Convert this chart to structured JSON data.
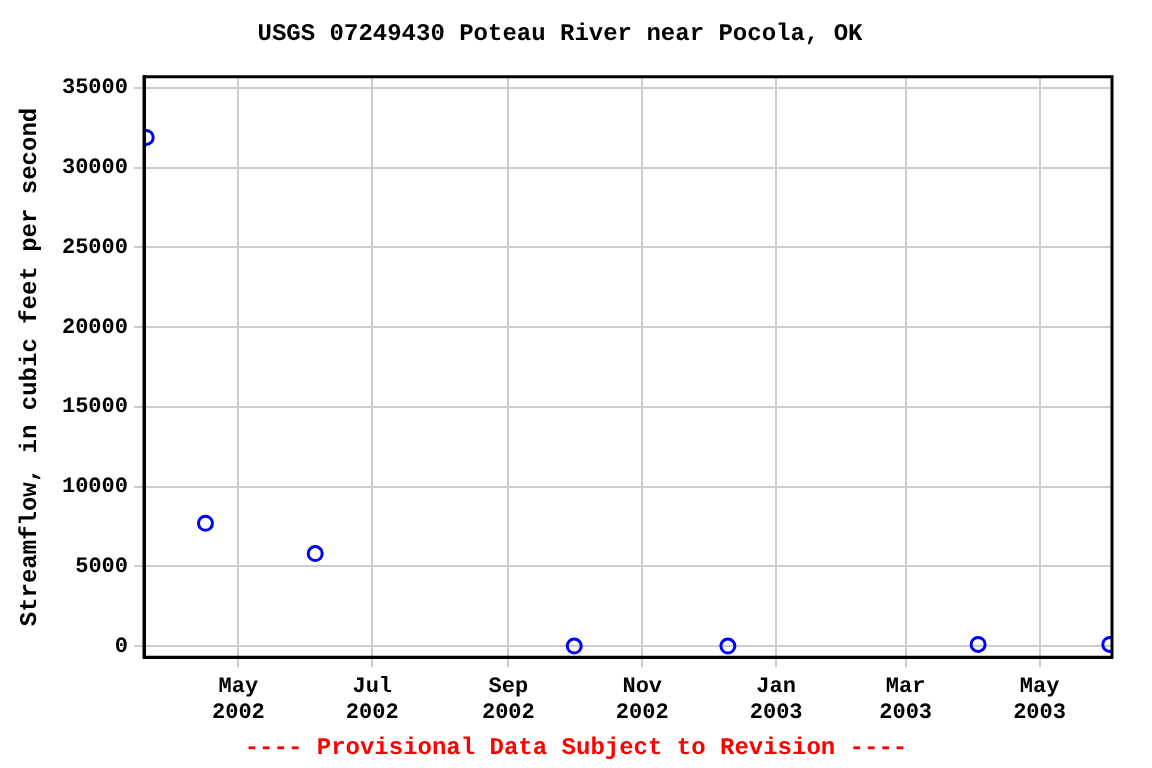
{
  "chart_data": {
    "type": "scatter",
    "title": "USGS 07249430 Poteau River near Pocola, OK",
    "ylabel": "Streamflow, in cubic feet per second",
    "x": [
      "2002-03-20",
      "2002-04-16",
      "2002-06-05",
      "2002-10-01",
      "2002-12-10",
      "2003-04-03",
      "2003-06-02"
    ],
    "series": [
      {
        "color": "#0000ff",
        "values": [
          31900,
          7700,
          5800,
          0,
          0,
          100,
          100
        ]
      }
    ],
    "xlim": [
      "2002-03-19",
      "2003-06-03"
    ],
    "xticks": [
      {
        "value": "2002-05-01",
        "label": "May 2002"
      },
      {
        "value": "2002-07-01",
        "label": "Jul 2002"
      },
      {
        "value": "2002-09-01",
        "label": "Sep 2002"
      },
      {
        "value": "2002-11-01",
        "label": "Nov 2002"
      },
      {
        "value": "2003-01-01",
        "label": "Jan 2003"
      },
      {
        "value": "2003-03-01",
        "label": "Mar 2003"
      },
      {
        "value": "2003-05-01",
        "label": "May 2003"
      }
    ],
    "ylim": [
      -700,
      35700
    ],
    "yticks": [
      0,
      5000,
      10000,
      15000,
      20000,
      25000,
      30000,
      35000
    ],
    "grid": true,
    "legend": false,
    "marker": "circle",
    "annotations": [
      "---- Provisional Data Subject to Revision ----"
    ]
  }
}
